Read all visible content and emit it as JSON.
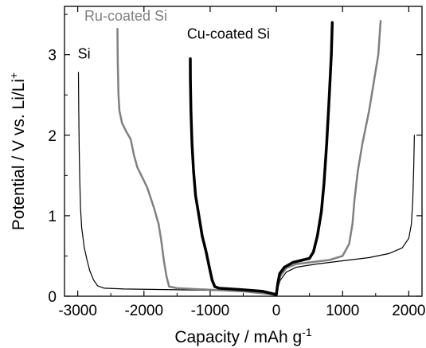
{
  "chart_data": {
    "type": "line",
    "title": "",
    "xlabel_main": "Capacity / mAh g",
    "xlabel_sup": "-1",
    "ylabel_main": "Potential / V vs. Li/Li",
    "ylabel_sup": "+",
    "xlim": [
      -3200,
      2200
    ],
    "ylim": [
      0,
      3.6
    ],
    "xticks": [
      -3000,
      -2000,
      -1000,
      0,
      1000,
      2000
    ],
    "xtick_labels": [
      "-3000",
      "-2000",
      "-1000",
      "0",
      "1000",
      "2000"
    ],
    "yticks": [
      0,
      1,
      2,
      3
    ],
    "ytick_labels": [
      "0",
      "1",
      "2",
      "3"
    ],
    "grid": false,
    "series": [
      {
        "name": "Si",
        "color": "#000000",
        "width": 1.2,
        "label_color": "#000000",
        "points": [
          [
            -2990,
            2.78
          ],
          [
            -2985,
            2.3
          ],
          [
            -2978,
            1.8
          ],
          [
            -2968,
            1.4
          ],
          [
            -2958,
            1.1
          ],
          [
            -2940,
            0.85
          ],
          [
            -2900,
            0.6
          ],
          [
            -2860,
            0.45
          ],
          [
            -2820,
            0.32
          ],
          [
            -2760,
            0.2
          ],
          [
            -2700,
            0.13
          ],
          [
            -2600,
            0.1
          ],
          [
            -2300,
            0.09
          ],
          [
            -1500,
            0.08
          ],
          [
            -800,
            0.07
          ],
          [
            -300,
            0.06
          ],
          [
            0,
            0.02
          ],
          [
            20,
            0.1
          ],
          [
            60,
            0.2
          ],
          [
            150,
            0.3
          ],
          [
            300,
            0.36
          ],
          [
            600,
            0.4
          ],
          [
            1000,
            0.44
          ],
          [
            1400,
            0.48
          ],
          [
            1700,
            0.53
          ],
          [
            1900,
            0.6
          ],
          [
            2000,
            0.72
          ],
          [
            2040,
            0.9
          ],
          [
            2060,
            1.2
          ],
          [
            2075,
            1.6
          ],
          [
            2085,
            2.0
          ]
        ]
      },
      {
        "name": "Ru-coated Si",
        "color": "#808080",
        "width": 2.5,
        "label_color": "#808080",
        "points": [
          [
            -2400,
            3.32
          ],
          [
            -2395,
            2.9
          ],
          [
            -2385,
            2.5
          ],
          [
            -2370,
            2.3
          ],
          [
            -2330,
            2.15
          ],
          [
            -2270,
            2.05
          ],
          [
            -2200,
            1.95
          ],
          [
            -2150,
            1.75
          ],
          [
            -2100,
            1.6
          ],
          [
            -2040,
            1.5
          ],
          [
            -1950,
            1.35
          ],
          [
            -1850,
            1.1
          ],
          [
            -1780,
            0.9
          ],
          [
            -1740,
            0.7
          ],
          [
            -1700,
            0.45
          ],
          [
            -1660,
            0.25
          ],
          [
            -1620,
            0.12
          ],
          [
            -1500,
            0.1
          ],
          [
            -1000,
            0.08
          ],
          [
            -500,
            0.06
          ],
          [
            0,
            0.02
          ],
          [
            20,
            0.12
          ],
          [
            60,
            0.25
          ],
          [
            150,
            0.35
          ],
          [
            300,
            0.4
          ],
          [
            500,
            0.42
          ],
          [
            800,
            0.45
          ],
          [
            1000,
            0.5
          ],
          [
            1100,
            0.65
          ],
          [
            1150,
            0.9
          ],
          [
            1180,
            1.2
          ],
          [
            1230,
            1.55
          ],
          [
            1300,
            1.9
          ],
          [
            1400,
            2.3
          ],
          [
            1480,
            2.7
          ],
          [
            1540,
            3.0
          ],
          [
            1575,
            3.42
          ]
        ]
      },
      {
        "name": "Cu-coated Si",
        "color": "#000000",
        "width": 3.5,
        "label_color": "#000000",
        "points": [
          [
            -1300,
            2.95
          ],
          [
            -1298,
            2.7
          ],
          [
            -1290,
            2.3
          ],
          [
            -1275,
            1.9
          ],
          [
            -1250,
            1.55
          ],
          [
            -1220,
            1.25
          ],
          [
            -1170,
            1.0
          ],
          [
            -1120,
            0.75
          ],
          [
            -1060,
            0.55
          ],
          [
            -1010,
            0.35
          ],
          [
            -970,
            0.2
          ],
          [
            -930,
            0.12
          ],
          [
            -870,
            0.1
          ],
          [
            -500,
            0.08
          ],
          [
            -200,
            0.06
          ],
          [
            0,
            0.02
          ],
          [
            20,
            0.15
          ],
          [
            50,
            0.28
          ],
          [
            120,
            0.36
          ],
          [
            250,
            0.42
          ],
          [
            400,
            0.45
          ],
          [
            500,
            0.47
          ],
          [
            560,
            0.55
          ],
          [
            620,
            0.75
          ],
          [
            680,
            1.05
          ],
          [
            720,
            1.4
          ],
          [
            760,
            1.9
          ],
          [
            800,
            2.5
          ],
          [
            830,
            3.0
          ],
          [
            845,
            3.4
          ]
        ]
      }
    ]
  }
}
